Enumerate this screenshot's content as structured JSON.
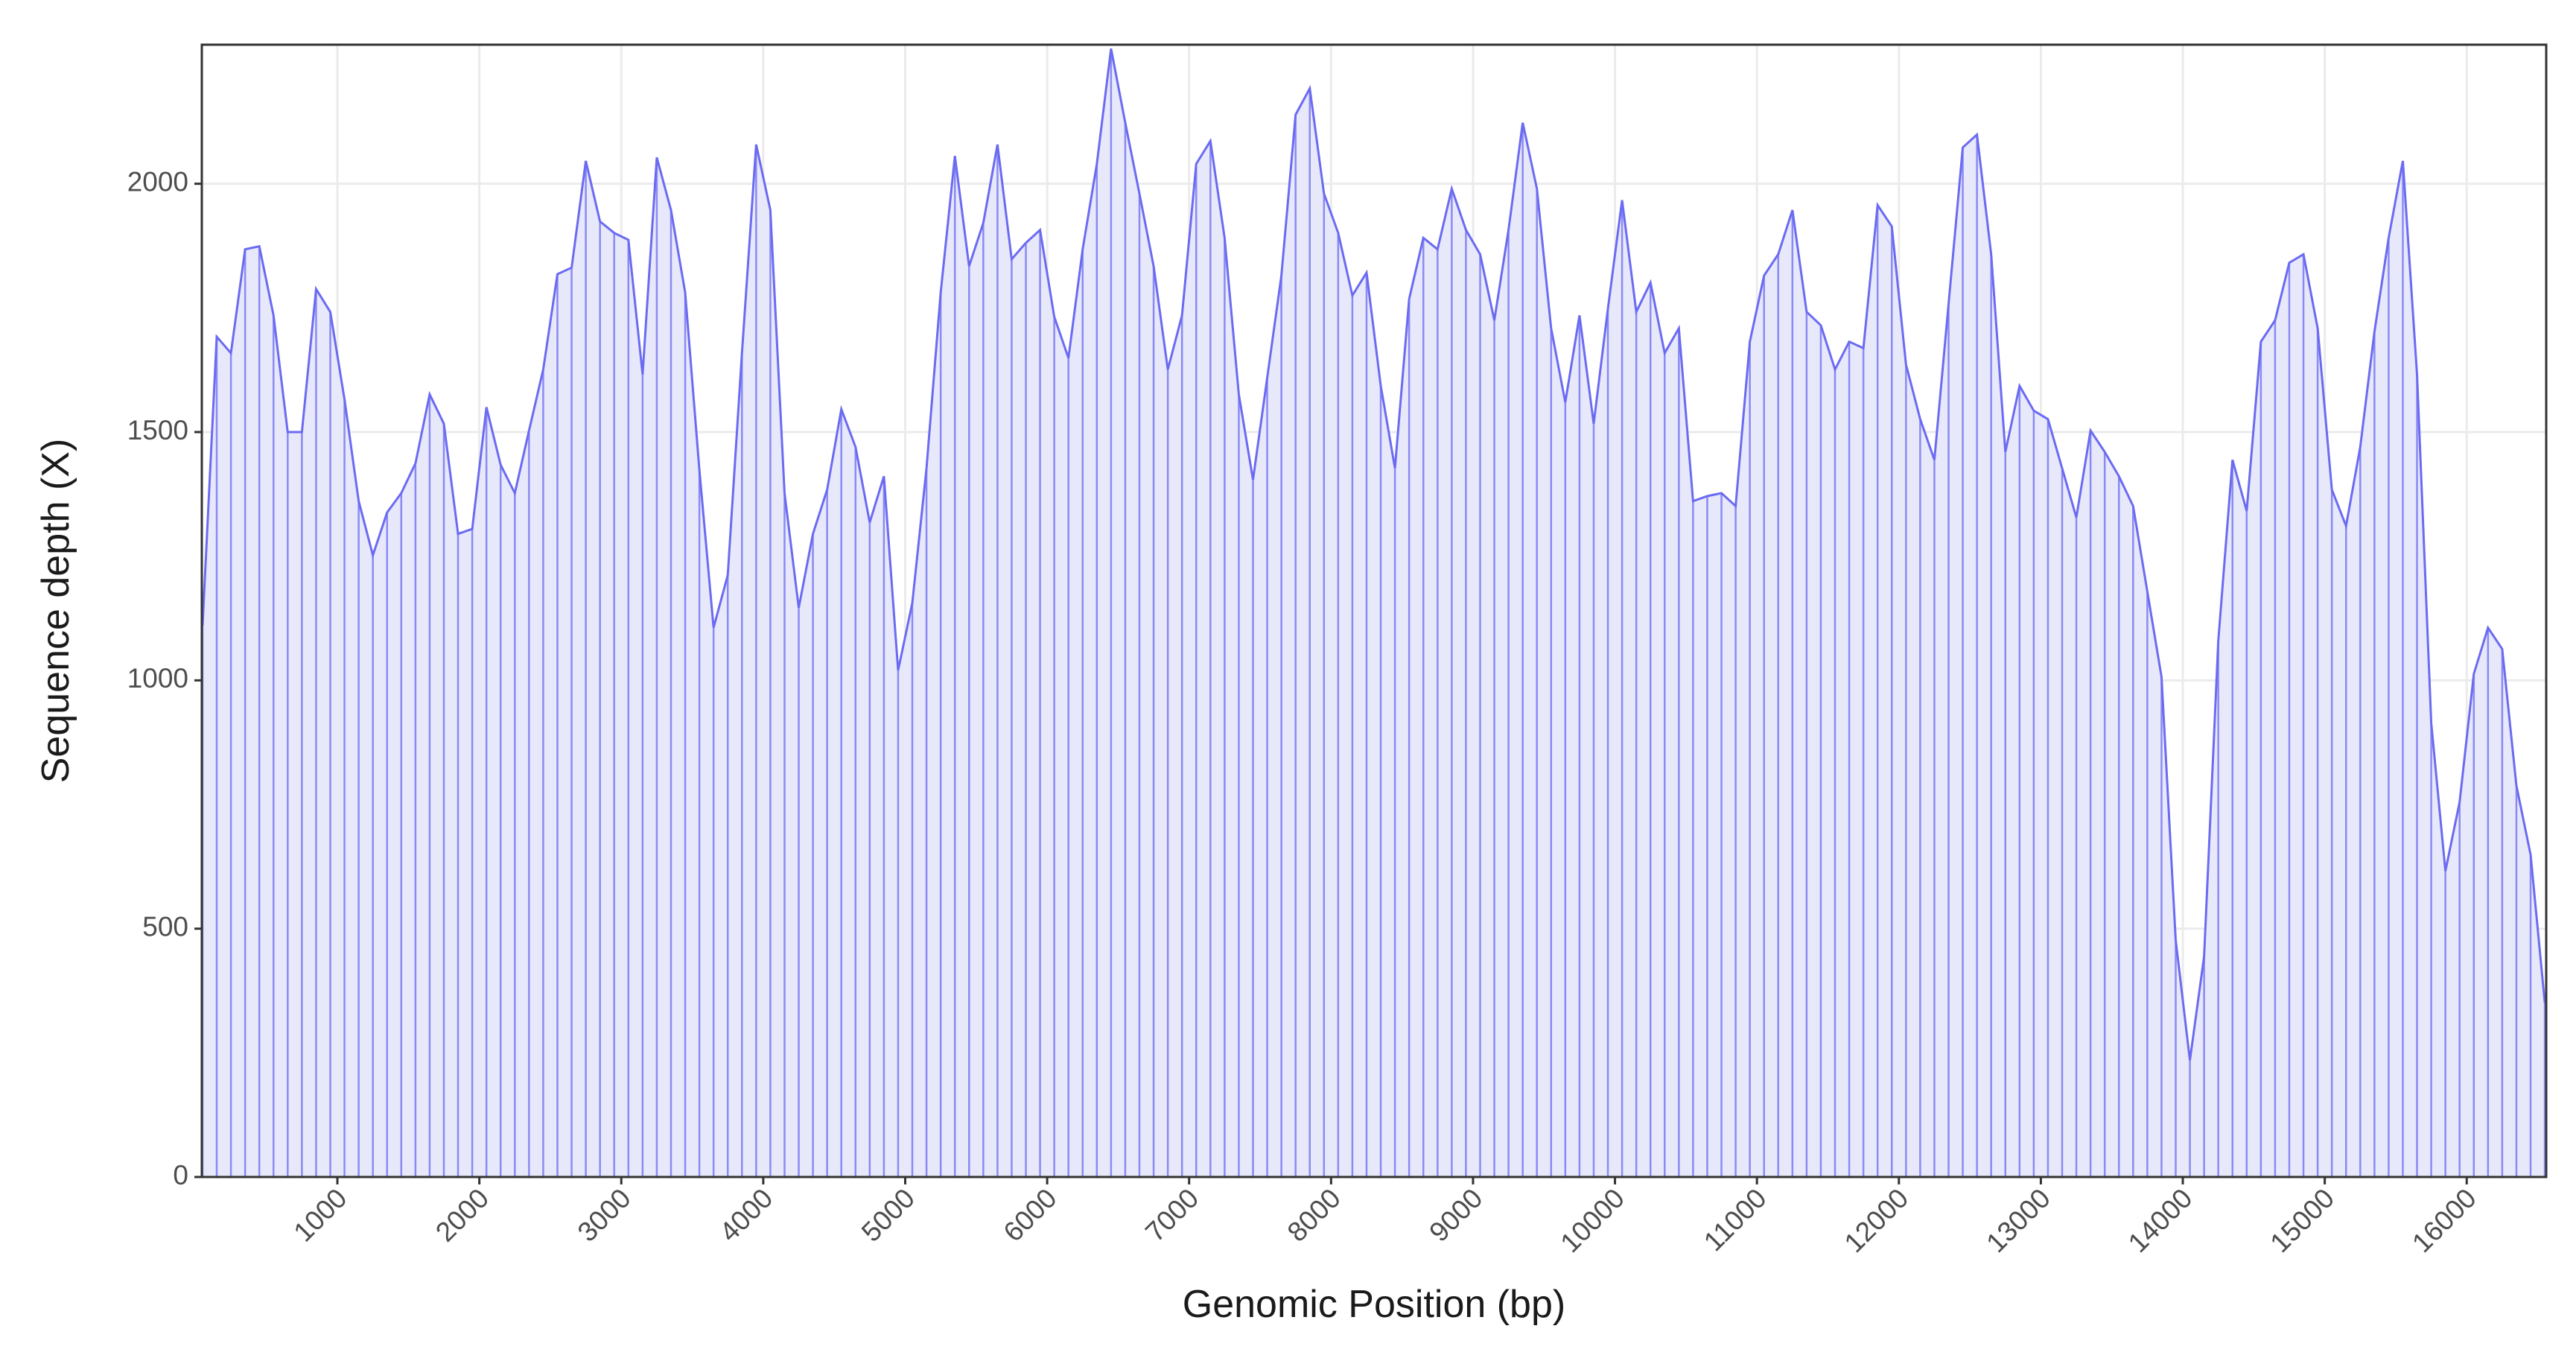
{
  "chart_data": {
    "type": "area",
    "x_label": "Genomic Position (bp)",
    "y_label": "Sequence depth (X)",
    "color": "#6b6bf2",
    "fill_color": "#e8e8fb",
    "grid": true,
    "xlim": [
      45,
      16560
    ],
    "ylim": [
      0,
      2280
    ],
    "xticks": [
      1000,
      2000,
      3000,
      4000,
      5000,
      6000,
      7000,
      8000,
      9000,
      10000,
      11000,
      12000,
      13000,
      14000,
      15000,
      16000
    ],
    "yticks": [
      0,
      500,
      1000,
      1500,
      2000
    ],
    "x": [
      50,
      150,
      250,
      350,
      450,
      550,
      650,
      750,
      850,
      950,
      1050,
      1150,
      1250,
      1350,
      1450,
      1550,
      1650,
      1750,
      1850,
      1950,
      2050,
      2150,
      2250,
      2350,
      2450,
      2550,
      2650,
      2750,
      2850,
      2950,
      3050,
      3150,
      3250,
      3350,
      3450,
      3550,
      3650,
      3750,
      3850,
      3950,
      4050,
      4150,
      4250,
      4350,
      4450,
      4550,
      4650,
      4750,
      4850,
      4950,
      5050,
      5150,
      5250,
      5350,
      5450,
      5550,
      5650,
      5750,
      5850,
      5950,
      6050,
      6150,
      6250,
      6350,
      6450,
      6550,
      6650,
      6750,
      6850,
      6950,
      7050,
      7150,
      7250,
      7350,
      7450,
      7550,
      7650,
      7750,
      7850,
      7950,
      8050,
      8150,
      8250,
      8350,
      8450,
      8550,
      8650,
      8750,
      8850,
      8950,
      9050,
      9150,
      9250,
      9350,
      9450,
      9550,
      9650,
      9750,
      9850,
      9950,
      10050,
      10150,
      10250,
      10350,
      10450,
      10550,
      10650,
      10750,
      10850,
      10950,
      11050,
      11150,
      11250,
      11350,
      11450,
      11550,
      11650,
      11750,
      11850,
      11950,
      12050,
      12150,
      12250,
      12350,
      12450,
      12550,
      12650,
      12750,
      12850,
      12950,
      13050,
      13150,
      13250,
      13350,
      13450,
      13550,
      13650,
      13750,
      13850,
      13950,
      14050,
      14150,
      14250,
      14350,
      14450,
      14550,
      14650,
      14750,
      14850,
      14950,
      15050,
      15150,
      15250,
      15350,
      15450,
      15550,
      15650,
      15750,
      15850,
      15950,
      16050,
      16150,
      16250,
      16350,
      16450,
      16550
    ],
    "values": [
      1110,
      1692,
      1659,
      1868,
      1874,
      1735,
      1500,
      1500,
      1788,
      1742,
      1566,
      1361,
      1252,
      1338,
      1377,
      1437,
      1576,
      1517,
      1295,
      1305,
      1550,
      1434,
      1377,
      1503,
      1626,
      1818,
      1831,
      2046,
      1924,
      1901,
      1887,
      1616,
      2053,
      1947,
      1781,
      1424,
      1106,
      1212,
      1659,
      2079,
      1947,
      1377,
      1146,
      1295,
      1384,
      1546,
      1470,
      1318,
      1411,
      1020,
      1156,
      1427,
      1781,
      2056,
      1834,
      1921,
      2079,
      1848,
      1881,
      1907,
      1732,
      1649,
      1868,
      2040,
      2272,
      2123,
      1980,
      1834,
      1626,
      1735,
      2040,
      2086,
      1891,
      1576,
      1404,
      1609,
      1815,
      2139,
      2192,
      1980,
      1901,
      1775,
      1821,
      1593,
      1427,
      1768,
      1891,
      1868,
      1990,
      1907,
      1858,
      1725,
      1907,
      2123,
      1990,
      1709,
      1560,
      1735,
      1517,
      1748,
      1967,
      1742,
      1801,
      1659,
      1709,
      1361,
      1371,
      1377,
      1351,
      1682,
      1815,
      1858,
      1947,
      1742,
      1715,
      1626,
      1682,
      1669,
      1957,
      1914,
      1636,
      1526,
      1444,
      1758,
      2073,
      2099,
      1858,
      1460,
      1593,
      1543,
      1526,
      1427,
      1328,
      1503,
      1460,
      1411,
      1351,
      1179,
      1007,
      477,
      235,
      444,
      1080,
      1444,
      1341,
      1682,
      1725,
      1841,
      1858,
      1709,
      1384,
      1311,
      1470,
      1702,
      1891,
      2046,
      1616,
      914,
      616,
      755,
      1013,
      1106,
      1063,
      788,
      649,
      351
    ]
  }
}
